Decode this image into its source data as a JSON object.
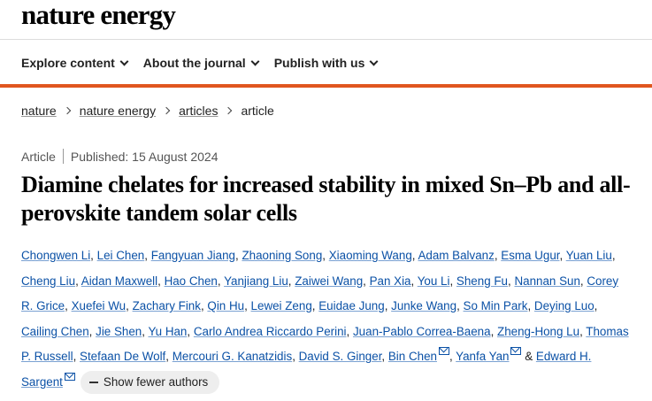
{
  "header": {
    "logo": "nature energy"
  },
  "nav": {
    "items": [
      {
        "label": "Explore content"
      },
      {
        "label": "About the journal"
      },
      {
        "label": "Publish with us"
      }
    ]
  },
  "breadcrumb": {
    "items": [
      "nature",
      "nature energy",
      "articles"
    ],
    "current": "article"
  },
  "article": {
    "type": "Article",
    "published": "Published: 15 August 2024",
    "title": "Diamine chelates for increased stability in mixed Sn–Pb and all-perovskite tandem solar cells"
  },
  "authors": [
    "Chongwen Li",
    "Lei Chen",
    "Fangyuan Jiang",
    "Zhaoning Song",
    "Xiaoming Wang",
    "Adam Balvanz",
    "Esma Ugur",
    "Yuan Liu",
    "Cheng Liu",
    "Aidan Maxwell",
    "Hao Chen",
    "Yanjiang Liu",
    "Zaiwei Wang",
    "Pan Xia",
    "You Li",
    "Sheng Fu",
    "Nannan Sun",
    "Corey R. Grice",
    "Xuefei Wu",
    "Zachary Fink",
    "Qin Hu",
    "Lewei Zeng",
    "Euidae Jung",
    "Junke Wang",
    "So Min Park",
    "Deying Luo",
    "Cailing Chen",
    "Jie Shen",
    "Yu Han",
    "Carlo Andrea Riccardo Perini",
    "Juan-Pablo Correa-Baena",
    "Zheng-Hong Lu",
    "Thomas P. Russell",
    "Stefaan De Wolf",
    "Mercouri G. Kanatzidis",
    "David S. Ginger",
    "Bin Chen",
    "Yanfa Yan",
    "Edward H. Sargent"
  ],
  "ampersand": "&",
  "show_fewer_label": "Show fewer authors"
}
